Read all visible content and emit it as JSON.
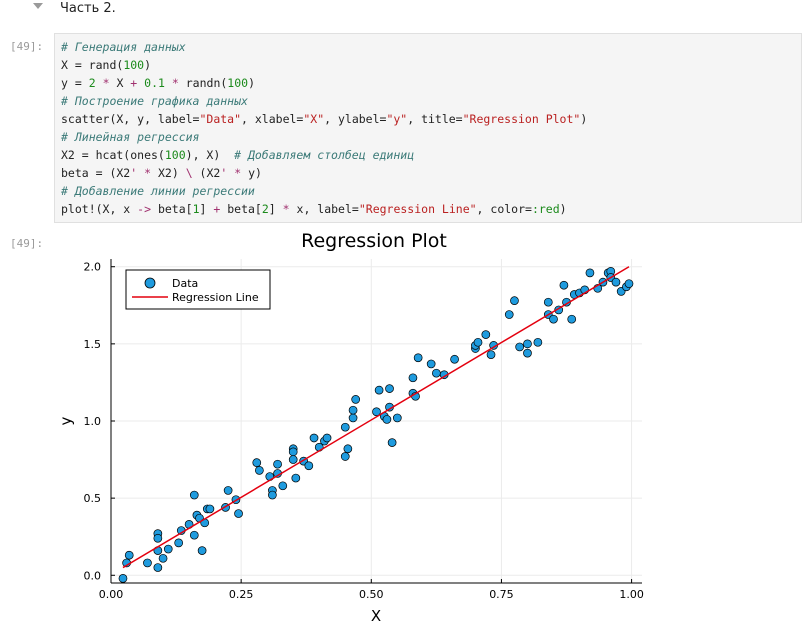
{
  "markdown_cell": {
    "text": "Часть 2."
  },
  "code_cell": {
    "prompt": "[49]:",
    "lines": [
      [
        [
          "cm",
          "# Генерация данных"
        ]
      ],
      [
        [
          "",
          "X = rand("
        ],
        [
          "num",
          "100"
        ],
        [
          "",
          ")"
        ]
      ],
      [
        [
          "",
          "y = "
        ],
        [
          "num",
          "2"
        ],
        [
          "",
          " "
        ],
        [
          "op",
          "*"
        ],
        [
          "",
          " X "
        ],
        [
          "op",
          "+"
        ],
        [
          "",
          " "
        ],
        [
          "num",
          "0.1"
        ],
        [
          "",
          " "
        ],
        [
          "op",
          "*"
        ],
        [
          "",
          " randn("
        ],
        [
          "num",
          "100"
        ],
        [
          "",
          ")"
        ]
      ],
      [
        [
          "cm",
          "# Построение графика данных"
        ]
      ],
      [
        [
          "",
          "scatter(X, y, label="
        ],
        [
          "str",
          "\"Data\""
        ],
        [
          "",
          ", xlabel="
        ],
        [
          "str",
          "\"X\""
        ],
        [
          "",
          ", ylabel="
        ],
        [
          "str",
          "\"y\""
        ],
        [
          "",
          ", title="
        ],
        [
          "str",
          "\"Regression Plot\""
        ],
        [
          "",
          ")"
        ]
      ],
      [
        [
          "cm",
          "# Линейная регрессия"
        ]
      ],
      [
        [
          "",
          "X2 = hcat(ones("
        ],
        [
          "num",
          "100"
        ],
        [
          "",
          "), X)  "
        ],
        [
          "cm",
          "# Добавляем столбец единиц"
        ]
      ],
      [
        [
          "",
          "beta = (X2"
        ],
        [
          "op",
          "'"
        ],
        [
          "",
          " "
        ],
        [
          "op",
          "*"
        ],
        [
          "",
          " X2) "
        ],
        [
          "op",
          "\\"
        ],
        [
          "",
          " (X2"
        ],
        [
          "op",
          "'"
        ],
        [
          "",
          " "
        ],
        [
          "op",
          "*"
        ],
        [
          "",
          " y)"
        ]
      ],
      [
        [
          "cm",
          "# Добавление линии регрессии"
        ]
      ],
      [
        [
          "",
          "plot!(X, x "
        ],
        [
          "op",
          "->"
        ],
        [
          "",
          " beta["
        ],
        [
          "num",
          "1"
        ],
        [
          "",
          "] "
        ],
        [
          "op",
          "+"
        ],
        [
          "",
          " beta["
        ],
        [
          "num",
          "2"
        ],
        [
          "",
          "] "
        ],
        [
          "op",
          "*"
        ],
        [
          "",
          " x, label="
        ],
        [
          "str",
          "\"Regression Line\""
        ],
        [
          "",
          ", color="
        ],
        [
          "sym",
          ":red"
        ],
        [
          "",
          ")"
        ]
      ]
    ]
  },
  "output_cell": {
    "prompt": "[49]:"
  },
  "chart_data": {
    "type": "scatter",
    "title": "Regression Plot",
    "xlabel": "X",
    "ylabel": "y",
    "xlim": [
      0,
      1.02
    ],
    "ylim": [
      -0.05,
      2.05
    ],
    "xticks": [
      0.0,
      0.25,
      0.5,
      0.75,
      1.0
    ],
    "xtick_labels": [
      "0.00",
      "0.25",
      "0.50",
      "0.75",
      "1.00"
    ],
    "yticks": [
      0.0,
      0.5,
      1.0,
      1.5,
      2.0
    ],
    "ytick_labels": [
      "0.0",
      "0.5",
      "1.0",
      "1.5",
      "2.0"
    ],
    "grid": true,
    "legend_position": "top-left",
    "series": [
      {
        "name": "Data",
        "type": "scatter",
        "color": "#1f9bde",
        "points": [
          [
            0.023,
            -0.02
          ],
          [
            0.03,
            0.08
          ],
          [
            0.035,
            0.13
          ],
          [
            0.07,
            0.08
          ],
          [
            0.09,
            0.27
          ],
          [
            0.09,
            0.24
          ],
          [
            0.09,
            0.16
          ],
          [
            0.09,
            0.05
          ],
          [
            0.1,
            0.11
          ],
          [
            0.11,
            0.17
          ],
          [
            0.13,
            0.21
          ],
          [
            0.135,
            0.29
          ],
          [
            0.15,
            0.33
          ],
          [
            0.16,
            0.52
          ],
          [
            0.16,
            0.26
          ],
          [
            0.165,
            0.39
          ],
          [
            0.17,
            0.37
          ],
          [
            0.175,
            0.16
          ],
          [
            0.185,
            0.43
          ],
          [
            0.18,
            0.34
          ],
          [
            0.19,
            0.43
          ],
          [
            0.22,
            0.44
          ],
          [
            0.225,
            0.55
          ],
          [
            0.24,
            0.49
          ],
          [
            0.245,
            0.4
          ],
          [
            0.28,
            0.73
          ],
          [
            0.285,
            0.68
          ],
          [
            0.305,
            0.64
          ],
          [
            0.31,
            0.55
          ],
          [
            0.31,
            0.52
          ],
          [
            0.32,
            0.66
          ],
          [
            0.32,
            0.72
          ],
          [
            0.33,
            0.58
          ],
          [
            0.35,
            0.82
          ],
          [
            0.35,
            0.8
          ],
          [
            0.35,
            0.75
          ],
          [
            0.355,
            0.63
          ],
          [
            0.37,
            0.74
          ],
          [
            0.38,
            0.71
          ],
          [
            0.39,
            0.89
          ],
          [
            0.4,
            0.83
          ],
          [
            0.41,
            0.87
          ],
          [
            0.415,
            0.89
          ],
          [
            0.45,
            0.96
          ],
          [
            0.45,
            0.77
          ],
          [
            0.455,
            0.82
          ],
          [
            0.465,
            1.02
          ],
          [
            0.465,
            1.07
          ],
          [
            0.47,
            1.14
          ],
          [
            0.51,
            1.06
          ],
          [
            0.515,
            1.2
          ],
          [
            0.525,
            1.03
          ],
          [
            0.53,
            1.01
          ],
          [
            0.535,
            1.21
          ],
          [
            0.535,
            1.09
          ],
          [
            0.54,
            0.86
          ],
          [
            0.55,
            1.02
          ],
          [
            0.58,
            1.28
          ],
          [
            0.58,
            1.18
          ],
          [
            0.585,
            1.16
          ],
          [
            0.59,
            1.41
          ],
          [
            0.615,
            1.37
          ],
          [
            0.625,
            1.31
          ],
          [
            0.64,
            1.3
          ],
          [
            0.66,
            1.4
          ],
          [
            0.7,
            1.47
          ],
          [
            0.7,
            1.49
          ],
          [
            0.705,
            1.51
          ],
          [
            0.72,
            1.56
          ],
          [
            0.73,
            1.43
          ],
          [
            0.735,
            1.49
          ],
          [
            0.765,
            1.69
          ],
          [
            0.775,
            1.78
          ],
          [
            0.785,
            1.48
          ],
          [
            0.8,
            1.44
          ],
          [
            0.8,
            1.5
          ],
          [
            0.82,
            1.51
          ],
          [
            0.84,
            1.77
          ],
          [
            0.84,
            1.69
          ],
          [
            0.85,
            1.66
          ],
          [
            0.86,
            1.72
          ],
          [
            0.87,
            1.88
          ],
          [
            0.875,
            1.77
          ],
          [
            0.885,
            1.66
          ],
          [
            0.89,
            1.82
          ],
          [
            0.9,
            1.83
          ],
          [
            0.91,
            1.85
          ],
          [
            0.92,
            1.96
          ],
          [
            0.935,
            1.86
          ],
          [
            0.945,
            1.9
          ],
          [
            0.955,
            1.96
          ],
          [
            0.96,
            1.97
          ],
          [
            0.96,
            1.93
          ],
          [
            0.97,
            1.9
          ],
          [
            0.98,
            1.84
          ],
          [
            0.99,
            1.87
          ],
          [
            0.995,
            1.89
          ]
        ]
      },
      {
        "name": "Regression Line",
        "type": "line",
        "color": "#e4000f",
        "points": [
          [
            0.023,
            0.05
          ],
          [
            0.995,
            2.0
          ]
        ]
      }
    ]
  }
}
